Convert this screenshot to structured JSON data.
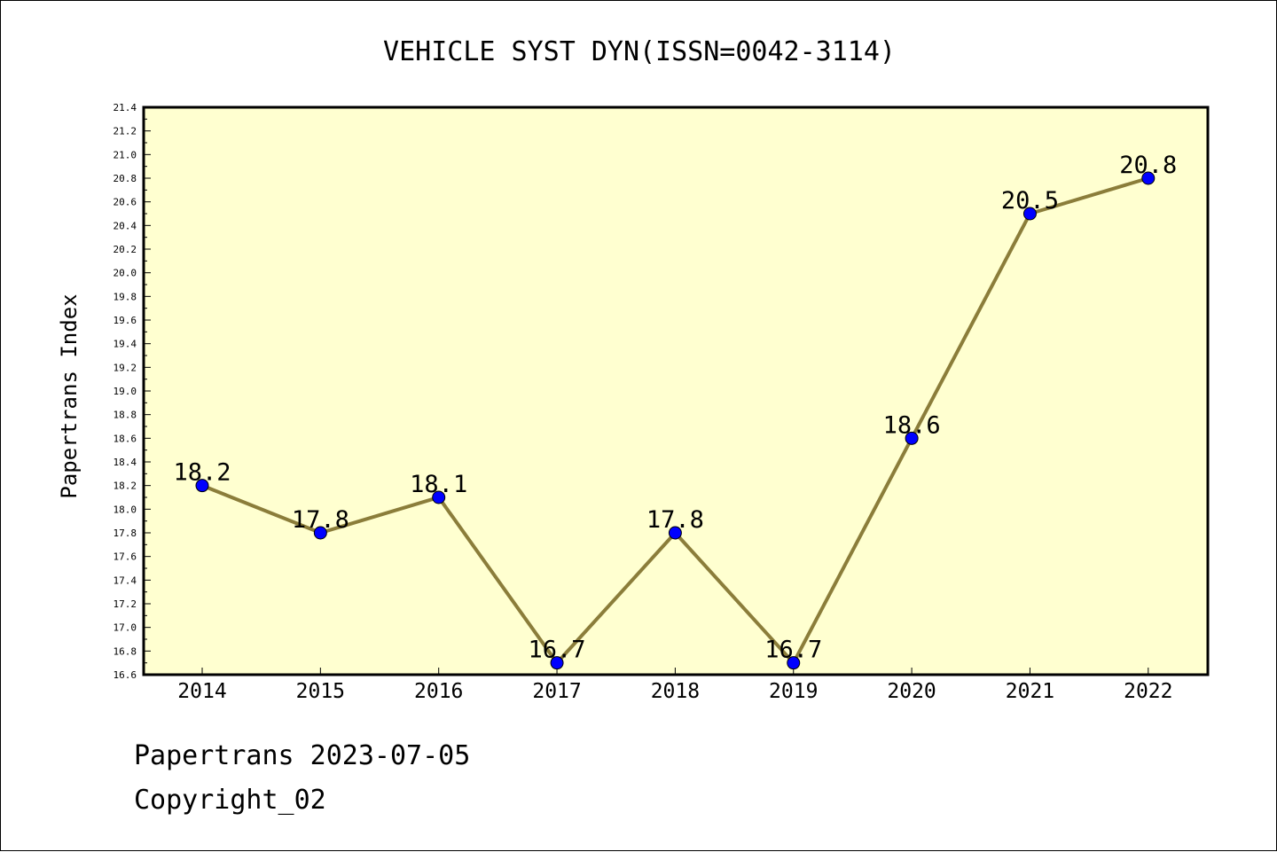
{
  "chart_data": {
    "type": "line",
    "title": "VEHICLE SYST DYN(ISSN=0042-3114)",
    "xlabel": "",
    "ylabel": "Papertrans Index",
    "categories": [
      "2014",
      "2015",
      "2016",
      "2017",
      "2018",
      "2019",
      "2020",
      "2021",
      "2022"
    ],
    "series": [
      {
        "values": [
          18.2,
          17.8,
          18.1,
          16.7,
          17.8,
          16.7,
          18.6,
          20.5,
          20.8
        ]
      }
    ],
    "data_labels": [
      "18.2",
      "17.8",
      "18.1",
      "16.7",
      "17.8",
      "16.7",
      "18.6",
      "20.5",
      "20.8"
    ],
    "ylim": [
      16.6,
      21.4
    ],
    "yticks": [
      "16.6",
      "16.8",
      "17.0",
      "17.2",
      "17.4",
      "17.6",
      "17.8",
      "18.0",
      "18.2",
      "18.4",
      "18.6",
      "18.8",
      "19.0",
      "19.2",
      "19.4",
      "19.6",
      "19.8",
      "20.0",
      "20.2",
      "20.4",
      "20.6",
      "20.8",
      "21.0",
      "21.2",
      "21.4"
    ],
    "grid": false,
    "colors": {
      "plot_background": "#ffffd0",
      "line": "#8b7d3a",
      "marker": "#0000ff"
    }
  },
  "footer": {
    "date_text": "Papertrans 2023-07-05",
    "copyright_text": "Copyright_02"
  }
}
